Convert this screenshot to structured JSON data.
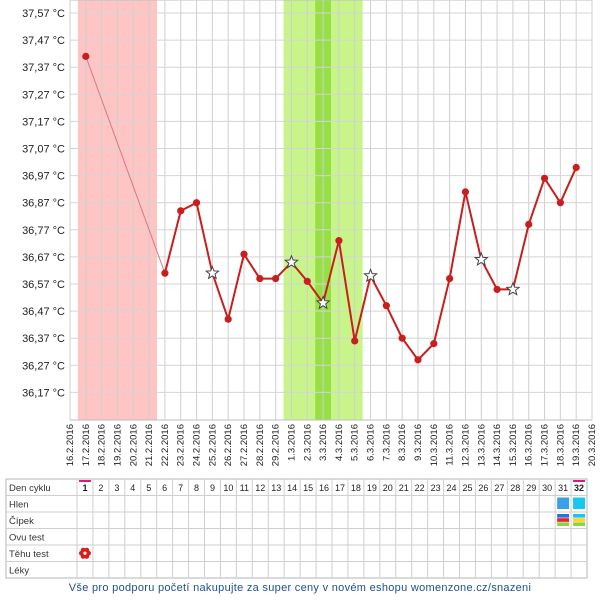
{
  "chart_data": {
    "type": "line",
    "title": "",
    "xlabel": "",
    "ylabel": "",
    "y_ticks": [
      "37,57 °C",
      "37,47 °C",
      "37,37 °C",
      "37,27 °C",
      "37,17 °C",
      "37,07 °C",
      "36,97 °C",
      "36,87 °C",
      "36,77 °C",
      "36,67 °C",
      "36,57 °C",
      "36,47 °C",
      "36,37 °C",
      "36,27 °C",
      "36,17 °C"
    ],
    "ylim": [
      36.12,
      37.57
    ],
    "dates": [
      "16.2.2016",
      "17.2.2016",
      "18.2.2016",
      "19.2.2016",
      "20.2.2016",
      "21.2.2016",
      "22.2.2016",
      "23.2.2016",
      "24.2.2016",
      "25.2.2016",
      "26.2.2016",
      "27.2.2016",
      "28.2.2016",
      "29.2.2016",
      "1.3.2016",
      "2.3.2016",
      "3.3.2016",
      "4.3.2016",
      "5.3.2016",
      "6.3.2016",
      "7.3.2016",
      "8.3.2016",
      "9.3.2016",
      "10.3.2016",
      "11.3.2016",
      "12.3.2016",
      "13.3.2016",
      "14.3.2016",
      "15.3.2016",
      "16.3.2016",
      "17.3.2016",
      "18.3.2016",
      "19.3.2016",
      "20.3.2016"
    ],
    "series": [
      {
        "color": "#c81e1e",
        "points": [
          {
            "date": "17.2.2016",
            "value": 37.41,
            "marker": "dot"
          },
          {
            "date": "22.2.2016",
            "value": 36.61,
            "marker": "dot"
          },
          {
            "date": "23.2.2016",
            "value": 36.84,
            "marker": "dot"
          },
          {
            "date": "24.2.2016",
            "value": 36.87,
            "marker": "dot"
          },
          {
            "date": "25.2.2016",
            "value": 36.61,
            "marker": "star"
          },
          {
            "date": "26.2.2016",
            "value": 36.44,
            "marker": "dot"
          },
          {
            "date": "27.2.2016",
            "value": 36.68,
            "marker": "dot"
          },
          {
            "date": "28.2.2016",
            "value": 36.59,
            "marker": "dot"
          },
          {
            "date": "29.2.2016",
            "value": 36.59,
            "marker": "dot"
          },
          {
            "date": "1.3.2016",
            "value": 36.65,
            "marker": "star"
          },
          {
            "date": "2.3.2016",
            "value": 36.58,
            "marker": "dot"
          },
          {
            "date": "3.3.2016",
            "value": 36.5,
            "marker": "star"
          },
          {
            "date": "4.3.2016",
            "value": 36.73,
            "marker": "dot"
          },
          {
            "date": "5.3.2016",
            "value": 36.36,
            "marker": "dot"
          },
          {
            "date": "6.3.2016",
            "value": 36.6,
            "marker": "star"
          },
          {
            "date": "7.3.2016",
            "value": 36.49,
            "marker": "dot"
          },
          {
            "date": "8.3.2016",
            "value": 36.37,
            "marker": "dot"
          },
          {
            "date": "9.3.2016",
            "value": 36.29,
            "marker": "dot"
          },
          {
            "date": "10.3.2016",
            "value": 36.35,
            "marker": "dot"
          },
          {
            "date": "11.3.2016",
            "value": 36.59,
            "marker": "dot"
          },
          {
            "date": "12.3.2016",
            "value": 36.91,
            "marker": "dot"
          },
          {
            "date": "13.3.2016",
            "value": 36.66,
            "marker": "star"
          },
          {
            "date": "14.3.2016",
            "value": 36.55,
            "marker": "dot"
          },
          {
            "date": "15.3.2016",
            "value": 36.55,
            "marker": "star"
          },
          {
            "date": "16.3.2016",
            "value": 36.79,
            "marker": "dot"
          },
          {
            "date": "17.3.2016",
            "value": 36.96,
            "marker": "dot"
          },
          {
            "date": "18.3.2016",
            "value": 36.87,
            "marker": "dot"
          },
          {
            "date": "19.3.2016",
            "value": 37.0,
            "marker": "dot"
          }
        ]
      }
    ],
    "bands": [
      {
        "from": "17.2.2016",
        "to": "21.2.2016",
        "color": "#ffc4c4"
      },
      {
        "from": "1.3.2016",
        "to": "5.3.2016",
        "color": "#c8f58a"
      },
      {
        "from": "3.3.2016",
        "to": "3.3.2016",
        "color": "#96e046"
      }
    ],
    "grid": true
  },
  "cycle_table": {
    "rows": [
      "Den cyklu",
      "Hlen",
      "Čípek",
      "Ovu test",
      "Těhu test",
      "Léky"
    ],
    "cycle_days": [
      "1",
      "2",
      "3",
      "4",
      "5",
      "6",
      "7",
      "8",
      "9",
      "10",
      "11",
      "12",
      "13",
      "14",
      "15",
      "16",
      "17",
      "18",
      "19",
      "20",
      "21",
      "22",
      "23",
      "24",
      "25",
      "26",
      "27",
      "28",
      "29",
      "30",
      "31",
      "32"
    ],
    "highlighted_days": [
      "1",
      "32"
    ],
    "accent_color": "#e0177a",
    "hlen_marks": [
      {
        "day": "31",
        "color": "#3aa0e8"
      },
      {
        "day": "32",
        "color": "#16c8ee"
      }
    ],
    "cipek_marks": [
      {
        "day": "31",
        "colors": [
          "#2f6fd6",
          "#e8242e",
          "#8bd44a"
        ]
      },
      {
        "day": "32",
        "colors": [
          "#16c8ee",
          "#ffd32a",
          "#8bd44a"
        ]
      }
    ],
    "tehu_test_mark": {
      "day": "1",
      "icon": "flower-icon",
      "color": "#e01a1a"
    }
  },
  "footer": {
    "text": "Vše pro podporu početí nakupujte za super ceny v novém eshopu womenzone.cz/snazeni"
  }
}
